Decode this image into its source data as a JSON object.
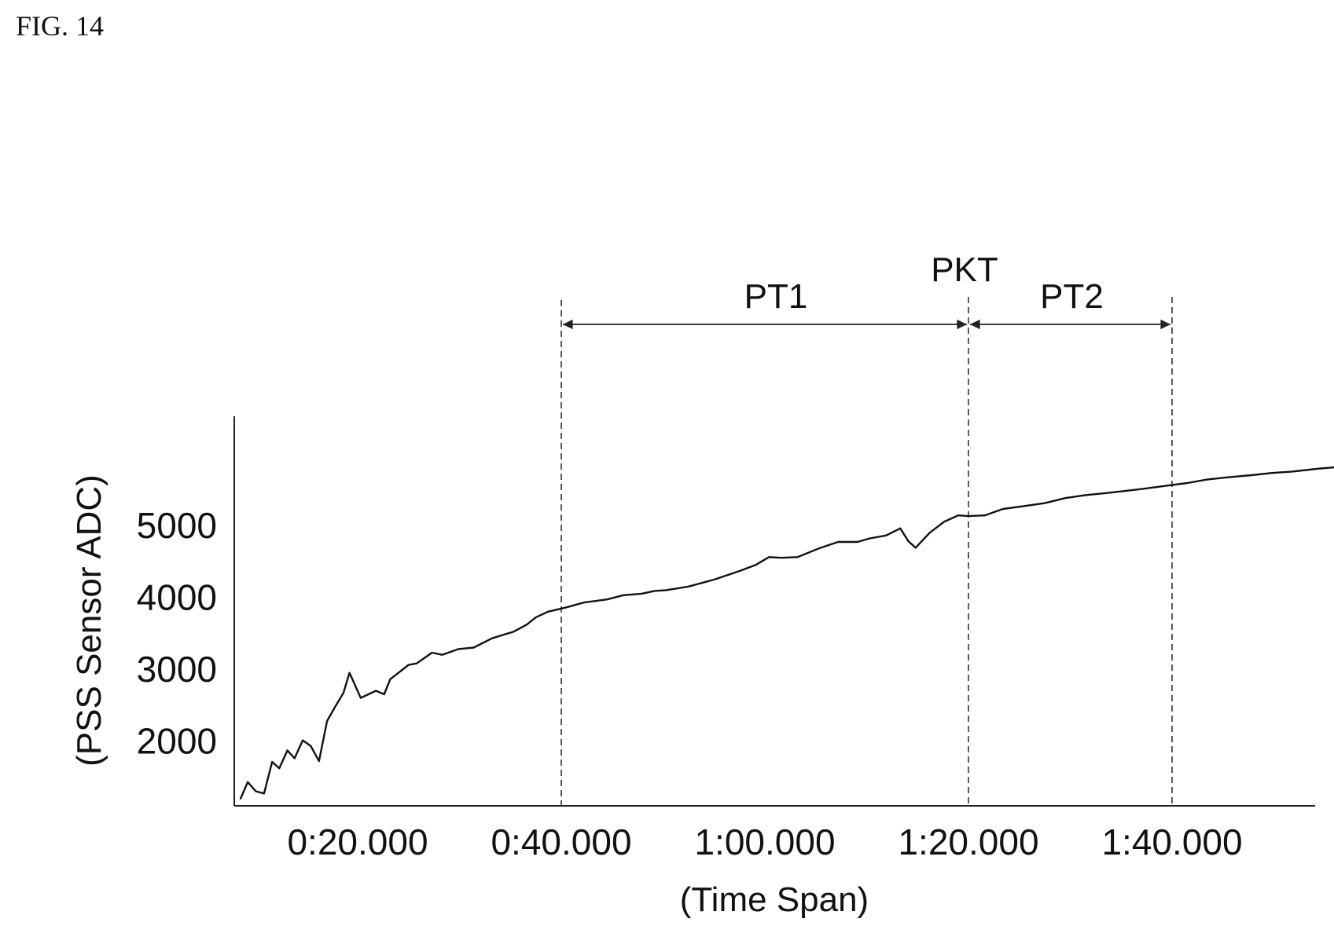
{
  "figure": {
    "label": "FIG. 14"
  },
  "chart_data": {
    "type": "line",
    "title": "",
    "xlabel": "(Time Span)",
    "ylabel": "(PSS Sensor ADC)",
    "x_unit": "seconds",
    "xlim": [
      4,
      126
    ],
    "ylim": [
      1000,
      6500
    ],
    "x_ticks": [
      {
        "value": 20,
        "label": "0:20.000"
      },
      {
        "value": 40,
        "label": "0:40.000"
      },
      {
        "value": 60,
        "label": "1:00.000"
      },
      {
        "value": 80,
        "label": "1:20.000"
      },
      {
        "value": 100,
        "label": "1:40.000"
      }
    ],
    "y_ticks": [
      {
        "value": 2000,
        "label": "2000"
      },
      {
        "value": 3000,
        "label": "3000"
      },
      {
        "value": 4000,
        "label": "4000"
      },
      {
        "value": 5000,
        "label": "5000"
      }
    ],
    "grid": false,
    "series": [
      {
        "x": [
          8.5,
          9.2,
          10,
          10.8,
          11.6,
          12.3,
          13.1,
          13.8,
          14.6,
          15.4,
          16.2,
          17,
          17.8,
          18.6,
          19.2,
          20.3,
          21.8,
          22.6,
          23.2,
          24.1,
          25,
          25.8,
          26.6,
          27.3,
          28.3,
          29.9,
          31.4,
          33.2,
          35.3,
          36.6,
          37.5,
          38.7,
          40.5,
          42.3,
          44.5,
          46.1,
          47.9,
          49.2,
          50.3,
          52.5,
          55.1,
          57.6,
          59.1,
          60.4,
          61.6,
          63.2,
          65.3,
          67.2,
          69.1,
          70.3,
          71.9,
          73.3,
          74.1,
          74.8,
          76.2,
          77.6,
          79,
          80,
          81.6,
          83.4,
          85.5,
          87.5,
          89.5,
          91.4,
          93.5,
          95.4,
          97.2,
          99.3,
          101.5,
          103.5,
          105.5,
          107.8,
          109.8,
          111.8,
          114.4,
          116.8,
          119.1,
          121.6,
          124,
          126
        ],
        "y": [
          1200,
          1430,
          1300,
          1270,
          1710,
          1620,
          1870,
          1760,
          2010,
          1930,
          1720,
          2280,
          2480,
          2670,
          2950,
          2600,
          2700,
          2650,
          2860,
          2960,
          3060,
          3080,
          3160,
          3230,
          3200,
          3280,
          3300,
          3430,
          3520,
          3620,
          3720,
          3800,
          3860,
          3930,
          3970,
          4030,
          4050,
          4090,
          4100,
          4150,
          4250,
          4370,
          4450,
          4560,
          4550,
          4560,
          4680,
          4770,
          4770,
          4820,
          4860,
          4960,
          4780,
          4690,
          4900,
          5050,
          5140,
          5130,
          5140,
          5230,
          5270,
          5310,
          5380,
          5420,
          5450,
          5480,
          5510,
          5550,
          5590,
          5640,
          5670,
          5700,
          5730,
          5750,
          5790,
          5820,
          5850,
          5880,
          5900,
          5910
        ]
      }
    ],
    "annotations": {
      "vlines": [
        40,
        80,
        100
      ],
      "PT1": {
        "label": "PT1",
        "from": 40,
        "to": 80
      },
      "PT2": {
        "label": "PT2",
        "from": 80,
        "to": 100
      },
      "PKT": {
        "label": "PKT",
        "at": 80
      }
    }
  }
}
